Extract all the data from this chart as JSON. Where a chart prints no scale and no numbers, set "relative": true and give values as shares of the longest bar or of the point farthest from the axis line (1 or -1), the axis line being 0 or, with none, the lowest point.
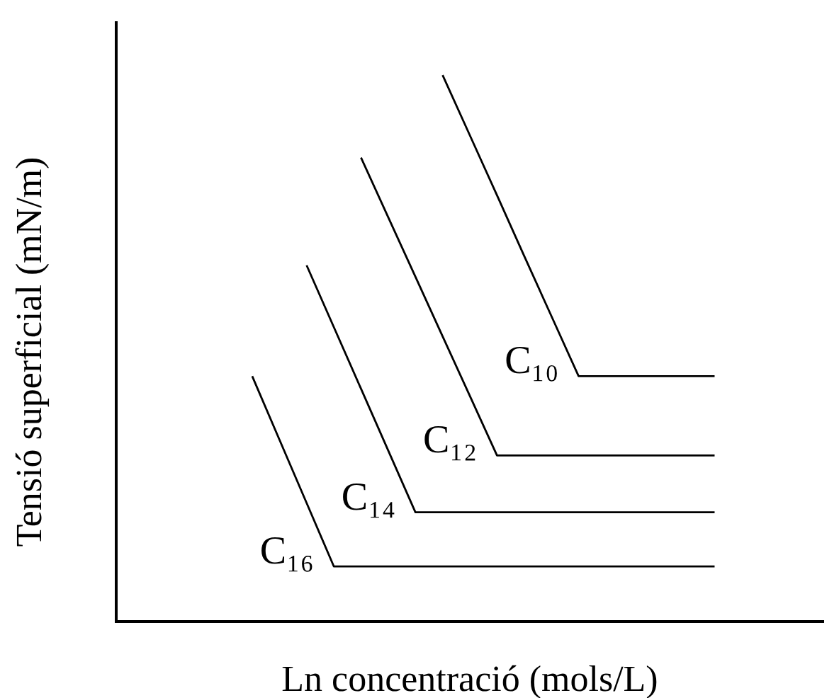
{
  "chart_data": {
    "type": "line",
    "relative": true,
    "xlabel": "Ln concentració (mols/L)",
    "ylabel": "Tensió superficial (mN/m)",
    "marker": "none",
    "categories": [
      null,
      null,
      null,
      null,
      null,
      null,
      null,
      null,
      null,
      null,
      null,
      null,
      null,
      null,
      null,
      null,
      null,
      null,
      null,
      null,
      null,
      null,
      null,
      null,
      null,
      null,
      null
    ],
    "series": [
      {
        "name": "C₁₀",
        "color": "#000000",
        "values": [
          null,
          null,
          null,
          null,
          null,
          null,
          null,
          null,
          null,
          null,
          null,
          null,
          1,
          0.89,
          0.78,
          0.669,
          0.559,
          0.449,
          0.449,
          0.449,
          0.449,
          0.449,
          0.449,
          null,
          null,
          null,
          null
        ]
      },
      {
        "name": "C₁₂",
        "color": "#000000",
        "values": [
          null,
          null,
          null,
          null,
          null,
          null,
          null,
          null,
          null,
          0.849,
          0.74,
          0.631,
          0.522,
          0.413,
          0.304,
          0.304,
          0.304,
          0.304,
          0.304,
          0.304,
          0.304,
          0.304,
          0.304,
          null,
          null,
          null,
          null
        ]
      },
      {
        "name": "C₁₄",
        "color": "#000000",
        "values": [
          null,
          null,
          null,
          null,
          null,
          null,
          null,
          0.652,
          0.539,
          0.426,
          0.313,
          0.2,
          0.2,
          0.2,
          0.2,
          0.2,
          0.2,
          0.2,
          0.2,
          0.2,
          0.2,
          0.2,
          0.2,
          null,
          null,
          null,
          null
        ]
      },
      {
        "name": "C₁₆",
        "color": "#000000",
        "values": [
          null,
          null,
          null,
          null,
          null,
          0.449,
          0.333,
          0.217,
          0.101,
          0.101,
          0.101,
          0.101,
          0.101,
          0.101,
          0.101,
          0.101,
          0.101,
          0.101,
          0.101,
          0.101,
          0.101,
          0.101,
          0.101,
          null,
          null,
          null,
          null
        ]
      }
    ]
  }
}
